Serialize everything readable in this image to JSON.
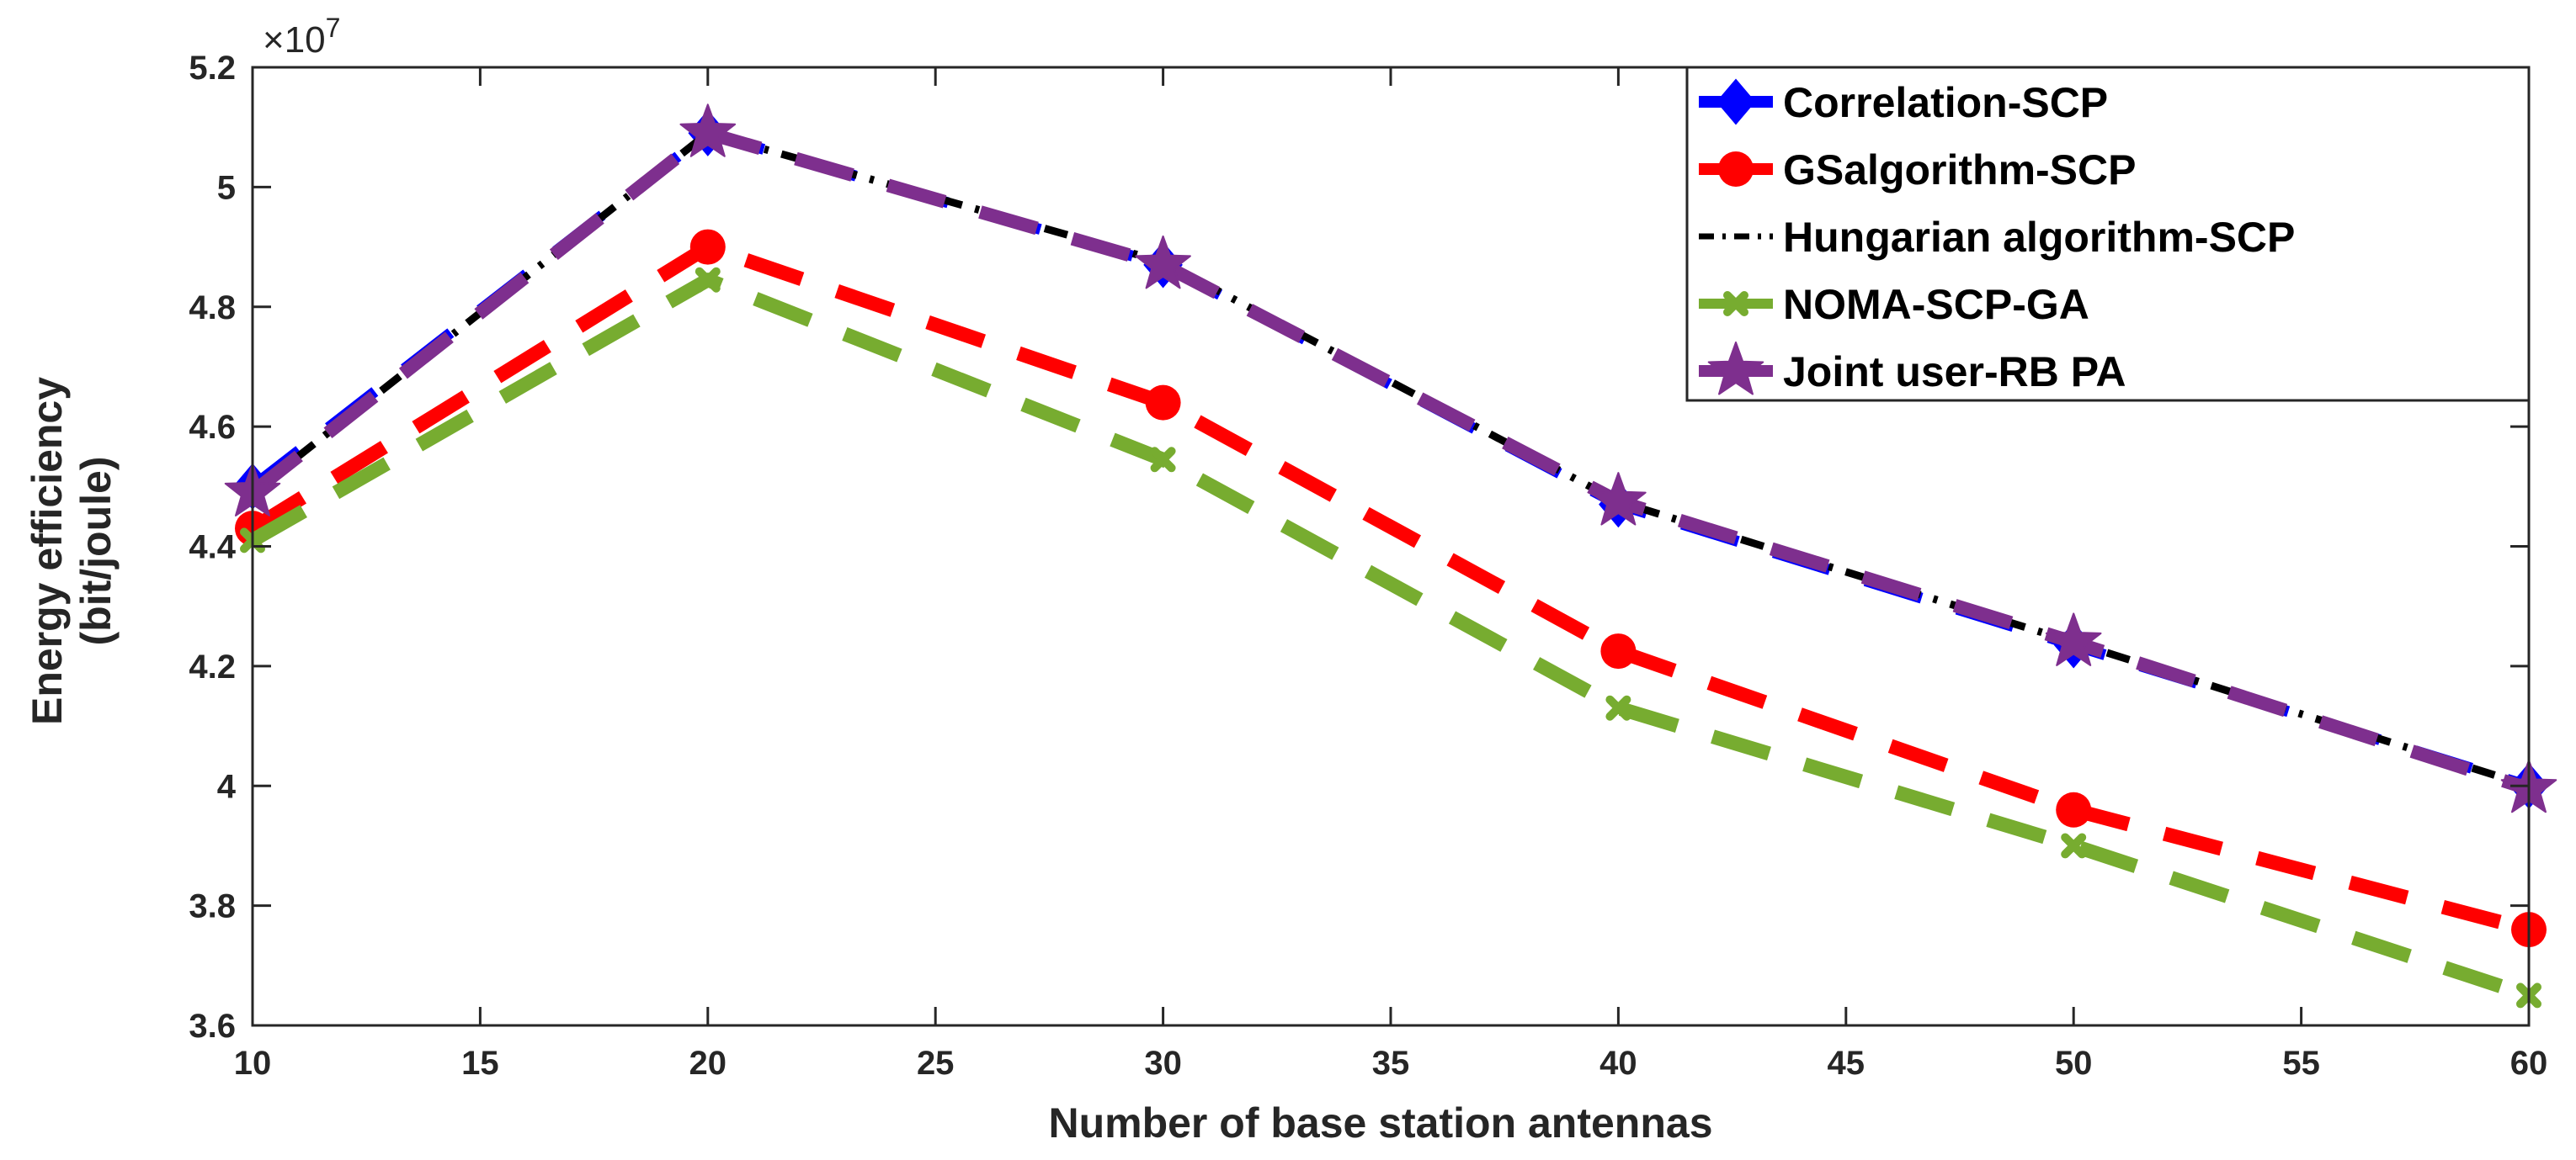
{
  "chart_data": {
    "type": "line",
    "title": "",
    "xlabel": "Number of base station antennas",
    "ylabel_line1": "Energy efficiency",
    "ylabel_line2": "(bit/joule)",
    "y_multiplier": "×10",
    "y_multiplier_exp": "7",
    "xlim": [
      10,
      60
    ],
    "ylim": [
      3.6,
      5.2
    ],
    "x_ticks": [
      10,
      15,
      20,
      25,
      30,
      35,
      40,
      45,
      50,
      55,
      60
    ],
    "x_tick_labels": [
      "10",
      "15",
      "20",
      "25",
      "30",
      "35",
      "40",
      "45",
      "50",
      "55",
      "60"
    ],
    "y_ticks": [
      3.6,
      3.8,
      4.0,
      4.2,
      4.4,
      4.6,
      4.8,
      5.0,
      5.2
    ],
    "y_tick_labels": [
      "3.6",
      "3.8",
      "4",
      "4.2",
      "4.4",
      "4.6",
      "4.8",
      "5",
      "5.2"
    ],
    "grid": false,
    "legend_position": "top-right",
    "x": [
      10,
      20,
      30,
      40,
      50,
      60
    ],
    "series": [
      {
        "name": "Correlation-SCP",
        "color": "#0000ff",
        "marker": "diamond",
        "line": "dashed",
        "values": [
          4.5,
          5.09,
          4.87,
          4.47,
          4.235,
          4.0
        ]
      },
      {
        "name": "GSalgorithm-SCP",
        "color": "#ff0000",
        "marker": "circle",
        "line": "dashed",
        "values": [
          4.43,
          4.9,
          4.64,
          4.225,
          3.96,
          3.76
        ]
      },
      {
        "name": "Hungarian algorithm-SCP",
        "color": "#000000",
        "marker": "none",
        "line": "dashdot",
        "values": [
          4.49,
          5.09,
          4.875,
          4.475,
          4.24,
          4.0
        ]
      },
      {
        "name": "NOMA-SCP-GA",
        "color": "#77ac30",
        "marker": "cross",
        "line": "dashed",
        "values": [
          4.41,
          4.845,
          4.545,
          4.13,
          3.9,
          3.65
        ]
      },
      {
        "name": "Joint user-RB PA",
        "color": "#7e2f8e",
        "marker": "star",
        "line": "dashed",
        "values": [
          4.49,
          5.09,
          4.87,
          4.475,
          4.24,
          3.995
        ]
      }
    ]
  }
}
